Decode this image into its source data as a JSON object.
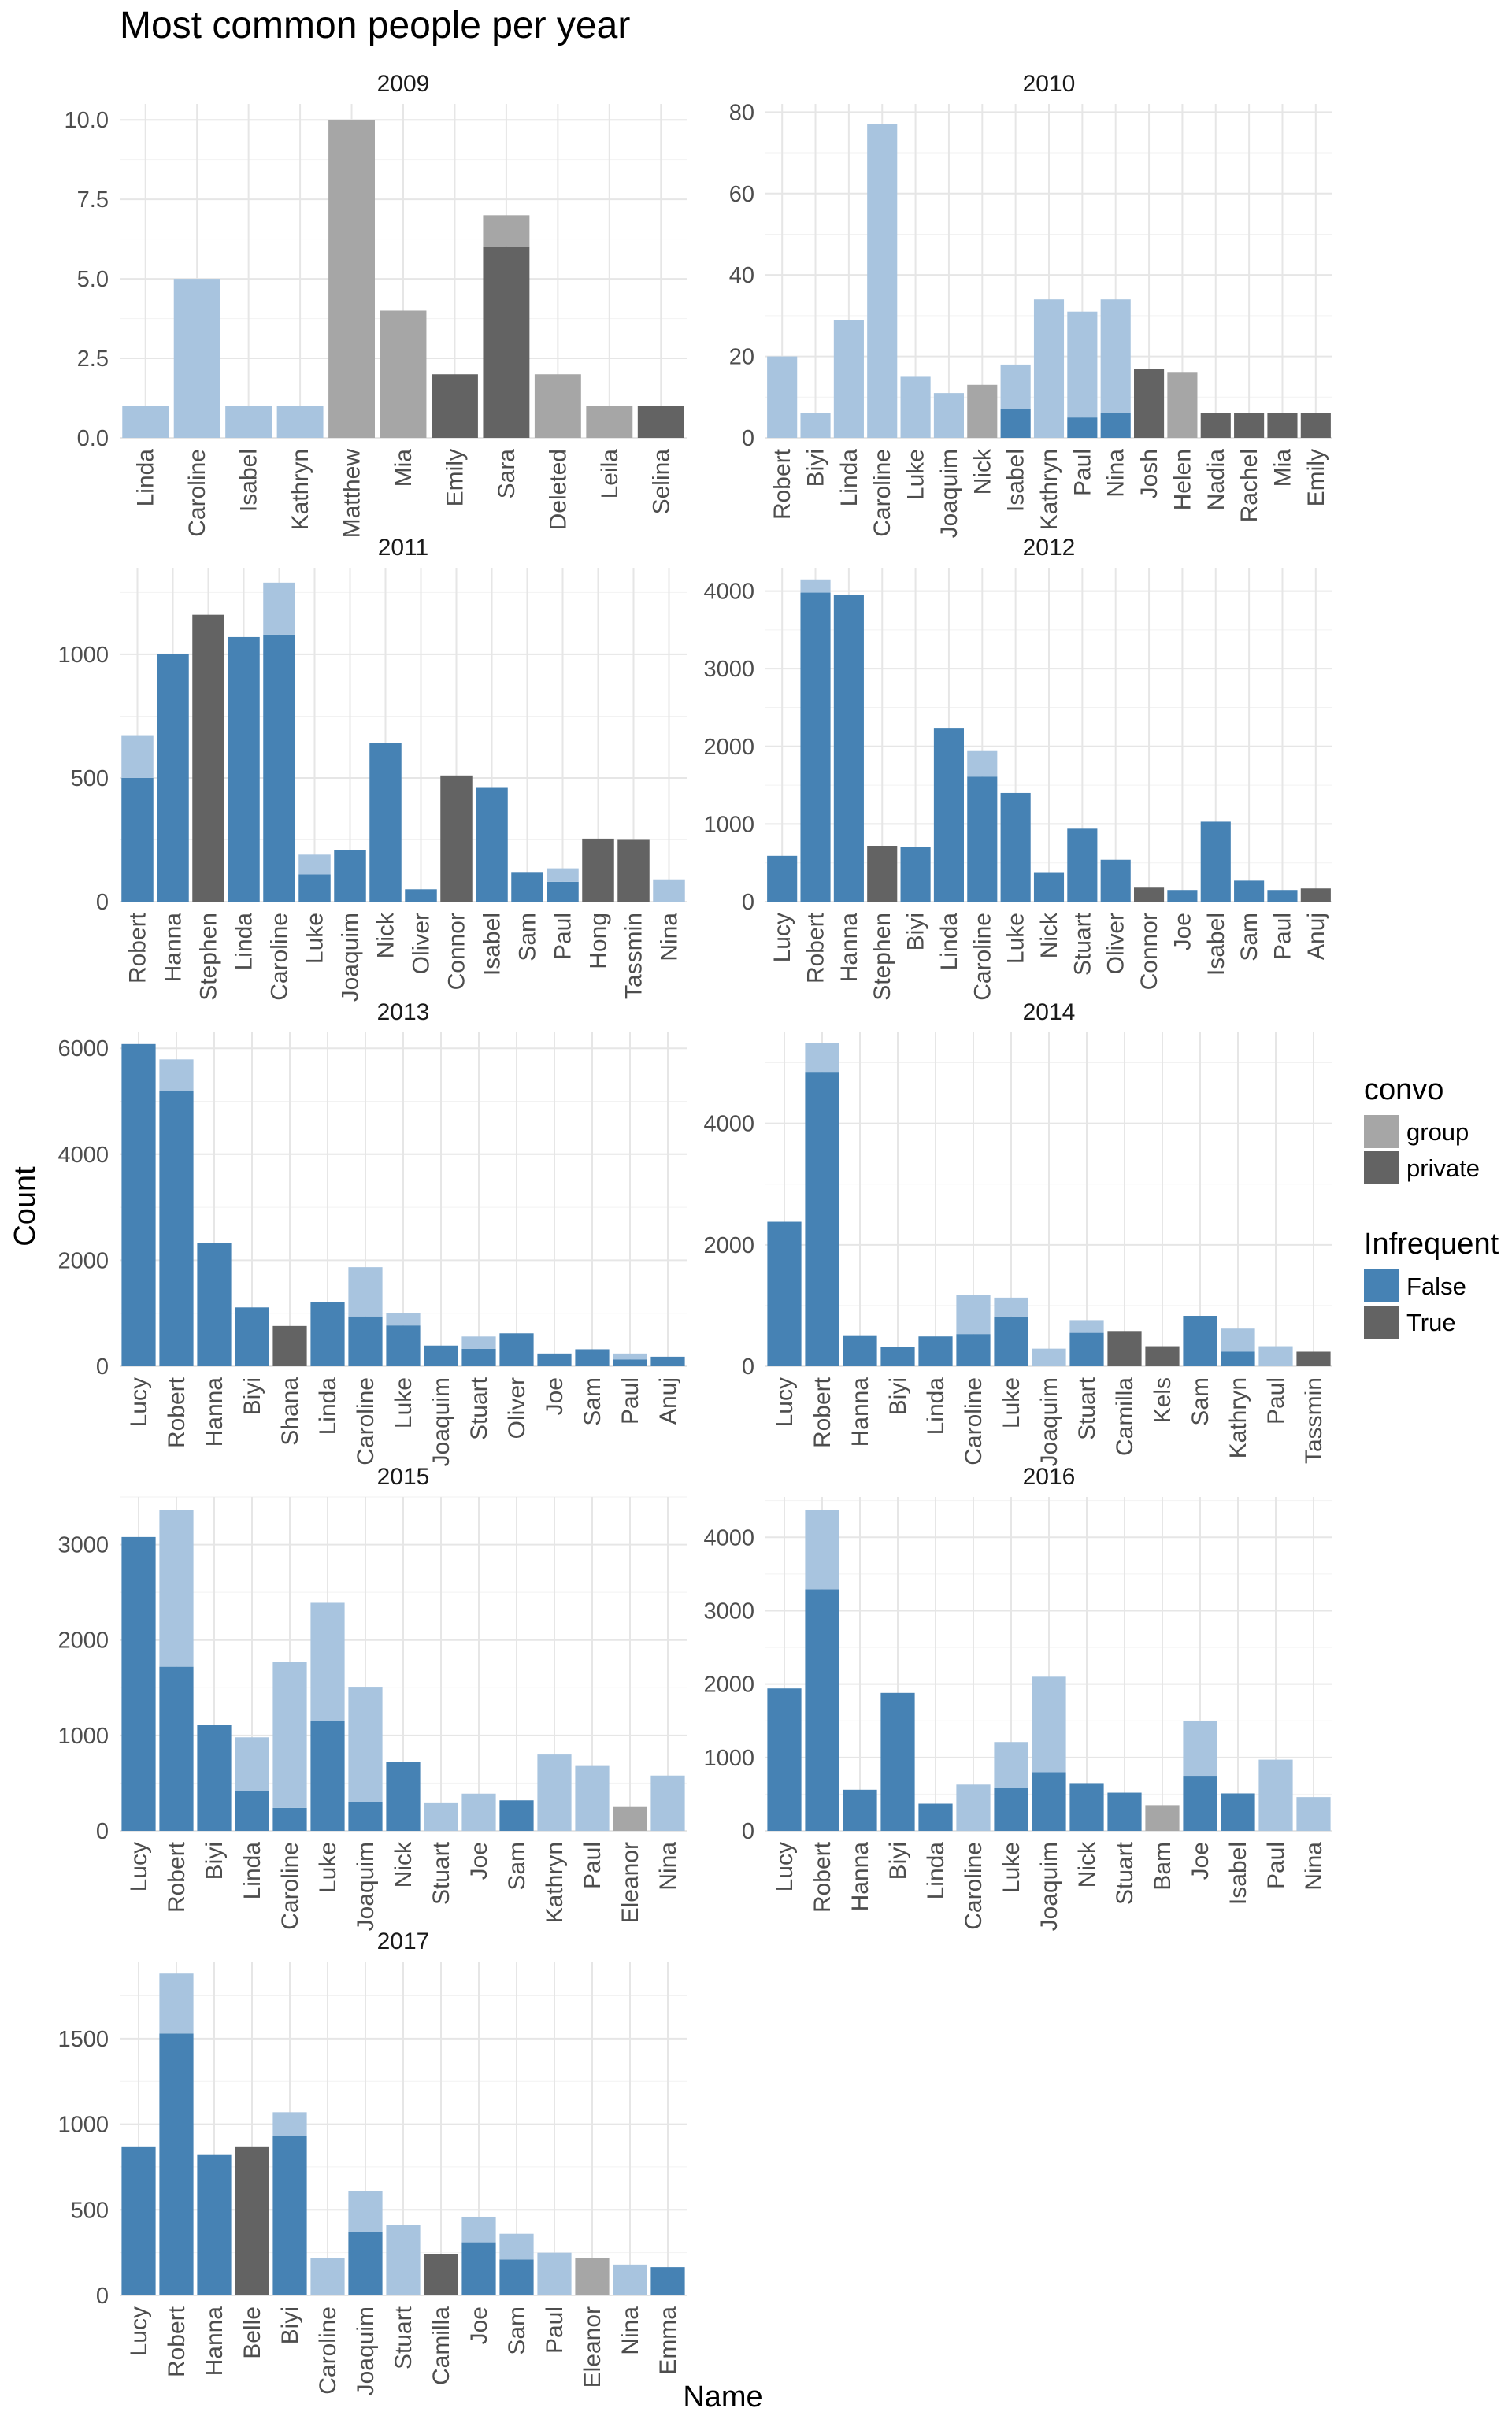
{
  "title": "Most common people per year",
  "xlabel": "Name",
  "ylabel": "Count",
  "legend": {
    "convo": {
      "title": "convo",
      "items": [
        {
          "label": "group",
          "color": "#a6a6a6"
        },
        {
          "label": "private",
          "color": "#636363"
        }
      ]
    },
    "infrequent": {
      "title": "Infrequent",
      "items": [
        {
          "label": "False",
          "color": "#4682b4"
        },
        {
          "label": "True",
          "color": "#636363"
        }
      ]
    }
  },
  "colors": {
    "private_frequent": "#4682b4",
    "private_infrequent": "#636363",
    "group_frequent": "#a8c4df",
    "group_infrequent": "#a6a6a6"
  },
  "chart_data": [
    {
      "type": "bar",
      "title": "2009",
      "ylim": [
        0,
        10.5
      ],
      "ticks": [
        0,
        2.5,
        5,
        7.5,
        10
      ],
      "tick_labels": [
        "0.0",
        "2.5",
        "5.0",
        "7.5",
        "10.0"
      ],
      "categories": [
        "Linda",
        "Caroline",
        "Isabel",
        "Kathryn",
        "Matthew",
        "Mia",
        "Emily",
        "Sara",
        "Deleted",
        "Leila",
        "Selina"
      ],
      "series": [
        {
          "name": "private",
          "values": [
            0,
            0,
            0,
            0,
            0,
            0,
            2,
            6,
            0,
            0,
            1
          ]
        },
        {
          "name": "group",
          "values": [
            1,
            5,
            1,
            1,
            10,
            4,
            0,
            1,
            2,
            1,
            0
          ]
        }
      ],
      "infrequent": [
        false,
        false,
        false,
        false,
        true,
        true,
        true,
        true,
        true,
        true,
        true
      ]
    },
    {
      "type": "bar",
      "title": "2010",
      "ylim": [
        0,
        82
      ],
      "ticks": [
        0,
        20,
        40,
        60,
        80
      ],
      "tick_labels": [
        "0",
        "20",
        "40",
        "60",
        "80"
      ],
      "categories": [
        "Robert",
        "Biyi",
        "Linda",
        "Caroline",
        "Luke",
        "Joaquim",
        "Nick",
        "Isabel",
        "Kathryn",
        "Paul",
        "Nina",
        "Josh",
        "Helen",
        "Nadia",
        "Rachel",
        "Mia",
        "Emily"
      ],
      "series": [
        {
          "name": "private",
          "values": [
            0,
            0,
            0,
            0,
            0,
            0,
            0,
            7,
            0,
            5,
            6,
            17,
            0,
            6,
            6,
            6,
            6
          ]
        },
        {
          "name": "group",
          "values": [
            20,
            6,
            29,
            77,
            15,
            11,
            13,
            11,
            34,
            26,
            28,
            0,
            16,
            0,
            0,
            0,
            0
          ]
        }
      ],
      "infrequent": [
        false,
        false,
        false,
        false,
        false,
        false,
        true,
        false,
        false,
        false,
        false,
        true,
        true,
        true,
        true,
        true,
        true
      ]
    },
    {
      "type": "bar",
      "title": "2011",
      "ylim": [
        0,
        1350
      ],
      "ticks": [
        0,
        500,
        1000
      ],
      "tick_labels": [
        "0",
        "500",
        "1000"
      ],
      "categories": [
        "Robert",
        "Hanna",
        "Stephen",
        "Linda",
        "Caroline",
        "Luke",
        "Joaquim",
        "Nick",
        "Oliver",
        "Connor",
        "Isabel",
        "Sam",
        "Paul",
        "Hong",
        "Tassmin",
        "Nina"
      ],
      "series": [
        {
          "name": "private",
          "values": [
            500,
            1000,
            1160,
            1070,
            1080,
            110,
            210,
            640,
            50,
            510,
            460,
            120,
            80,
            255,
            250,
            0
          ]
        },
        {
          "name": "group",
          "values": [
            170,
            0,
            0,
            0,
            210,
            80,
            0,
            0,
            0,
            0,
            0,
            0,
            55,
            0,
            0,
            90
          ]
        }
      ],
      "infrequent": [
        false,
        false,
        true,
        false,
        false,
        false,
        false,
        false,
        false,
        true,
        false,
        false,
        false,
        true,
        true,
        false
      ]
    },
    {
      "type": "bar",
      "title": "2012",
      "ylim": [
        0,
        4300
      ],
      "ticks": [
        0,
        1000,
        2000,
        3000,
        4000
      ],
      "tick_labels": [
        "0",
        "1000",
        "2000",
        "3000",
        "4000"
      ],
      "categories": [
        "Lucy",
        "Robert",
        "Hanna",
        "Stephen",
        "Biyi",
        "Linda",
        "Caroline",
        "Luke",
        "Nick",
        "Stuart",
        "Oliver",
        "Connor",
        "Joe",
        "Isabel",
        "Sam",
        "Paul",
        "Anuj"
      ],
      "series": [
        {
          "name": "private",
          "values": [
            590,
            3980,
            3950,
            720,
            700,
            2230,
            1610,
            1400,
            380,
            940,
            540,
            180,
            150,
            1030,
            270,
            150,
            170
          ]
        },
        {
          "name": "group",
          "values": [
            0,
            170,
            0,
            0,
            0,
            0,
            330,
            0,
            0,
            0,
            0,
            0,
            0,
            0,
            0,
            0,
            0
          ]
        }
      ],
      "infrequent": [
        false,
        false,
        false,
        true,
        false,
        false,
        false,
        false,
        false,
        false,
        false,
        true,
        false,
        false,
        false,
        false,
        true
      ]
    },
    {
      "type": "bar",
      "title": "2013",
      "ylim": [
        0,
        6300
      ],
      "ticks": [
        0,
        2000,
        4000,
        6000
      ],
      "tick_labels": [
        "0",
        "2000",
        "4000",
        "6000"
      ],
      "categories": [
        "Lucy",
        "Robert",
        "Hanna",
        "Biyi",
        "Shana",
        "Linda",
        "Caroline",
        "Luke",
        "Joaquim",
        "Stuart",
        "Oliver",
        "Joe",
        "Sam",
        "Paul",
        "Anuj"
      ],
      "series": [
        {
          "name": "private",
          "values": [
            6080,
            5200,
            2320,
            1110,
            760,
            1210,
            940,
            770,
            390,
            330,
            620,
            240,
            320,
            130,
            180
          ]
        },
        {
          "name": "group",
          "values": [
            0,
            590,
            0,
            0,
            0,
            0,
            930,
            240,
            0,
            230,
            0,
            0,
            0,
            110,
            0
          ]
        }
      ],
      "infrequent": [
        false,
        false,
        false,
        false,
        true,
        false,
        false,
        false,
        false,
        false,
        false,
        false,
        false,
        false,
        false
      ]
    },
    {
      "type": "bar",
      "title": "2014",
      "ylim": [
        0,
        5500
      ],
      "ticks": [
        0,
        2000,
        4000
      ],
      "tick_labels": [
        "0",
        "2000",
        "4000"
      ],
      "categories": [
        "Lucy",
        "Robert",
        "Hanna",
        "Biyi",
        "Linda",
        "Caroline",
        "Luke",
        "Joaquim",
        "Stuart",
        "Camilla",
        "Kels",
        "Sam",
        "Kathryn",
        "Paul",
        "Tassmin"
      ],
      "series": [
        {
          "name": "private",
          "values": [
            2380,
            4850,
            510,
            320,
            490,
            530,
            820,
            0,
            550,
            580,
            330,
            830,
            240,
            0,
            240
          ]
        },
        {
          "name": "group",
          "values": [
            0,
            470,
            0,
            0,
            0,
            650,
            310,
            290,
            210,
            0,
            0,
            0,
            380,
            330,
            0
          ]
        }
      ],
      "infrequent": [
        false,
        false,
        false,
        false,
        false,
        false,
        false,
        false,
        false,
        true,
        true,
        false,
        false,
        false,
        true
      ]
    },
    {
      "type": "bar",
      "title": "2015",
      "ylim": [
        0,
        3500
      ],
      "ticks": [
        0,
        1000,
        2000,
        3000
      ],
      "tick_labels": [
        "0",
        "1000",
        "2000",
        "3000"
      ],
      "categories": [
        "Lucy",
        "Robert",
        "Biyi",
        "Linda",
        "Caroline",
        "Luke",
        "Joaquim",
        "Nick",
        "Stuart",
        "Joe",
        "Sam",
        "Kathryn",
        "Paul",
        "Eleanor",
        "Nina"
      ],
      "series": [
        {
          "name": "private",
          "values": [
            3080,
            1720,
            1110,
            420,
            240,
            1150,
            300,
            720,
            0,
            0,
            320,
            0,
            0,
            0,
            0
          ]
        },
        {
          "name": "group",
          "values": [
            0,
            1640,
            0,
            560,
            1530,
            1240,
            1210,
            0,
            290,
            390,
            0,
            800,
            680,
            250,
            580
          ]
        }
      ],
      "infrequent": [
        false,
        false,
        false,
        false,
        false,
        false,
        false,
        false,
        false,
        false,
        false,
        false,
        false,
        true,
        false
      ]
    },
    {
      "type": "bar",
      "title": "2016",
      "ylim": [
        0,
        4550
      ],
      "ticks": [
        0,
        1000,
        2000,
        3000,
        4000
      ],
      "tick_labels": [
        "0",
        "1000",
        "2000",
        "3000",
        "4000"
      ],
      "categories": [
        "Lucy",
        "Robert",
        "Hanna",
        "Biyi",
        "Linda",
        "Caroline",
        "Luke",
        "Joaquim",
        "Nick",
        "Stuart",
        "Bam",
        "Joe",
        "Isabel",
        "Paul",
        "Nina"
      ],
      "series": [
        {
          "name": "private",
          "values": [
            1940,
            3290,
            560,
            1880,
            370,
            0,
            590,
            800,
            650,
            520,
            0,
            740,
            510,
            0,
            0
          ]
        },
        {
          "name": "group",
          "values": [
            0,
            1080,
            0,
            0,
            0,
            630,
            620,
            1300,
            0,
            0,
            350,
            760,
            0,
            970,
            460
          ]
        }
      ],
      "infrequent": [
        false,
        false,
        false,
        false,
        false,
        false,
        false,
        false,
        false,
        false,
        true,
        false,
        false,
        false,
        false
      ]
    },
    {
      "type": "bar",
      "title": "2017",
      "ylim": [
        0,
        1950
      ],
      "ticks": [
        0,
        500,
        1000,
        1500
      ],
      "tick_labels": [
        "0",
        "500",
        "1000",
        "1500"
      ],
      "categories": [
        "Lucy",
        "Robert",
        "Hanna",
        "Belle",
        "Biyi",
        "Caroline",
        "Joaquim",
        "Stuart",
        "Camilla",
        "Joe",
        "Sam",
        "Paul",
        "Eleanor",
        "Nina",
        "Emma"
      ],
      "series": [
        {
          "name": "private",
          "values": [
            870,
            1530,
            820,
            870,
            930,
            0,
            370,
            0,
            240,
            310,
            210,
            0,
            0,
            0,
            165
          ]
        },
        {
          "name": "group",
          "values": [
            0,
            350,
            0,
            0,
            140,
            220,
            240,
            410,
            0,
            150,
            150,
            250,
            220,
            180,
            0
          ]
        }
      ],
      "infrequent": [
        false,
        false,
        false,
        true,
        false,
        false,
        false,
        false,
        true,
        false,
        false,
        false,
        true,
        false,
        false
      ]
    }
  ]
}
